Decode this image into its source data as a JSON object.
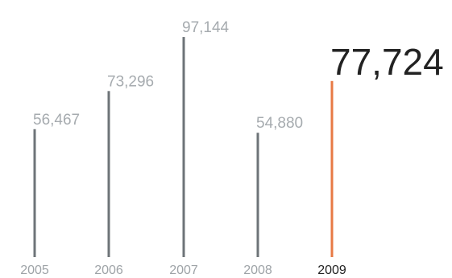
{
  "colors": {
    "bar_default": "#6e7478",
    "bar_highlight": "#e87a45",
    "label_default": "#a6abaf",
    "year_label_default": "#9ea3a7",
    "label_highlight": "#222222",
    "year_label_highlight": "#222222",
    "background": "#ffffff"
  },
  "chart_data": {
    "type": "bar",
    "style": "lollipop-lines",
    "title": "",
    "xlabel": "",
    "ylabel": "",
    "categories": [
      "2005",
      "2006",
      "2007",
      "2008",
      "2009"
    ],
    "values": [
      56467,
      73296,
      97144,
      54880,
      77724
    ],
    "value_labels": [
      "56,467",
      "73,296",
      "97,144",
      "54,880",
      "77,724"
    ],
    "highlight_index": 4,
    "ylim": [
      0,
      100000
    ],
    "grid": false,
    "legend": "none"
  }
}
